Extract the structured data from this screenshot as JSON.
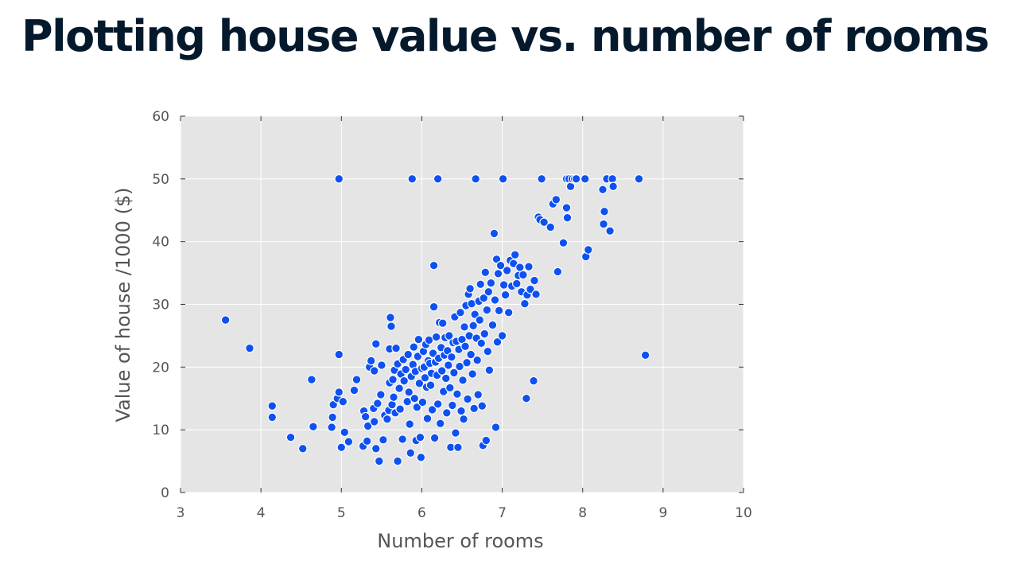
{
  "slide": {
    "title": "Plotting house value vs. number of rooms"
  },
  "colors": {
    "title": "#05192d",
    "plot_background": "#e5e5e5",
    "grid": "#ffffff",
    "point_fill": "#0f51f0",
    "point_edge": "#ffffff",
    "text": "#555555"
  },
  "chart_data": {
    "type": "scatter",
    "xlabel": "Number of rooms",
    "ylabel": "Value of house /1000 ($)",
    "xlim": [
      3,
      10
    ],
    "ylim": [
      0,
      60
    ],
    "xticks": [
      3,
      4,
      5,
      6,
      7,
      8,
      9,
      10
    ],
    "yticks": [
      0,
      10,
      20,
      30,
      40,
      50,
      60
    ],
    "grid": true,
    "legend": "none",
    "points": [
      [
        3.56,
        27.5
      ],
      [
        3.86,
        23.0
      ],
      [
        4.14,
        13.8
      ],
      [
        4.14,
        12.0
      ],
      [
        4.37,
        8.8
      ],
      [
        4.52,
        7.0
      ],
      [
        4.63,
        18.0
      ],
      [
        4.65,
        10.5
      ],
      [
        4.88,
        10.4
      ],
      [
        4.89,
        12.0
      ],
      [
        4.9,
        14.0
      ],
      [
        4.95,
        15.0
      ],
      [
        4.97,
        16.0
      ],
      [
        4.97,
        50.0
      ],
      [
        4.97,
        22.0
      ],
      [
        5.0,
        7.2
      ],
      [
        5.02,
        14.5
      ],
      [
        5.04,
        9.6
      ],
      [
        5.09,
        8.1
      ],
      [
        5.16,
        16.3
      ],
      [
        5.19,
        18.0
      ],
      [
        5.27,
        7.4
      ],
      [
        5.28,
        13.0
      ],
      [
        5.3,
        12.1
      ],
      [
        5.32,
        8.2
      ],
      [
        5.33,
        10.6
      ],
      [
        5.35,
        20.0
      ],
      [
        5.37,
        21.0
      ],
      [
        5.4,
        13.4
      ],
      [
        5.41,
        11.3
      ],
      [
        5.41,
        19.4
      ],
      [
        5.43,
        23.7
      ],
      [
        5.43,
        7.0
      ],
      [
        5.45,
        14.2
      ],
      [
        5.47,
        5.0
      ],
      [
        5.49,
        15.6
      ],
      [
        5.5,
        20.3
      ],
      [
        5.52,
        8.4
      ],
      [
        5.54,
        12.3
      ],
      [
        5.57,
        11.7
      ],
      [
        5.59,
        13.1
      ],
      [
        5.6,
        17.5
      ],
      [
        5.6,
        22.9
      ],
      [
        5.61,
        27.9
      ],
      [
        5.62,
        26.5
      ],
      [
        5.63,
        14.0
      ],
      [
        5.64,
        18.0
      ],
      [
        5.65,
        15.2
      ],
      [
        5.66,
        19.5
      ],
      [
        5.67,
        12.7
      ],
      [
        5.68,
        23.0
      ],
      [
        5.7,
        5.0
      ],
      [
        5.7,
        20.5
      ],
      [
        5.72,
        16.6
      ],
      [
        5.73,
        13.3
      ],
      [
        5.74,
        18.9
      ],
      [
        5.76,
        8.5
      ],
      [
        5.77,
        21.2
      ],
      [
        5.78,
        17.8
      ],
      [
        5.8,
        19.6
      ],
      [
        5.82,
        14.5
      ],
      [
        5.83,
        22.0
      ],
      [
        5.84,
        16.0
      ],
      [
        5.85,
        10.9
      ],
      [
        5.86,
        6.3
      ],
      [
        5.87,
        18.5
      ],
      [
        5.88,
        50.0
      ],
      [
        5.89,
        20.4
      ],
      [
        5.9,
        23.2
      ],
      [
        5.91,
        15.0
      ],
      [
        5.92,
        19.3
      ],
      [
        5.93,
        8.3
      ],
      [
        5.94,
        13.6
      ],
      [
        5.95,
        21.7
      ],
      [
        5.96,
        24.4
      ],
      [
        5.97,
        17.4
      ],
      [
        5.98,
        8.8
      ],
      [
        5.99,
        5.6
      ],
      [
        6.0,
        19.8
      ],
      [
        6.01,
        14.4
      ],
      [
        6.02,
        22.5
      ],
      [
        6.03,
        20.0
      ],
      [
        6.04,
        18.3
      ],
      [
        6.05,
        23.6
      ],
      [
        6.06,
        16.8
      ],
      [
        6.07,
        11.8
      ],
      [
        6.08,
        21.0
      ],
      [
        6.09,
        24.3
      ],
      [
        6.1,
        20.6
      ],
      [
        6.11,
        17.1
      ],
      [
        6.12,
        19.0
      ],
      [
        6.13,
        13.2
      ],
      [
        6.14,
        22.2
      ],
      [
        6.15,
        36.2
      ],
      [
        6.15,
        29.6
      ],
      [
        6.16,
        8.7
      ],
      [
        6.17,
        20.8
      ],
      [
        6.18,
        24.8
      ],
      [
        6.19,
        18.7
      ],
      [
        6.2,
        50.0
      ],
      [
        6.2,
        14.1
      ],
      [
        6.21,
        21.4
      ],
      [
        6.22,
        27.1
      ],
      [
        6.23,
        11.0
      ],
      [
        6.24,
        23.1
      ],
      [
        6.25,
        19.4
      ],
      [
        6.26,
        27.0
      ],
      [
        6.27,
        16.1
      ],
      [
        6.28,
        21.9
      ],
      [
        6.29,
        24.7
      ],
      [
        6.3,
        18.2
      ],
      [
        6.31,
        12.7
      ],
      [
        6.32,
        22.6
      ],
      [
        6.33,
        20.3
      ],
      [
        6.34,
        25.0
      ],
      [
        6.35,
        16.7
      ],
      [
        6.36,
        7.2
      ],
      [
        6.37,
        21.6
      ],
      [
        6.38,
        13.9
      ],
      [
        6.39,
        23.9
      ],
      [
        6.4,
        19.1
      ],
      [
        6.41,
        28.0
      ],
      [
        6.42,
        9.5
      ],
      [
        6.43,
        24.1
      ],
      [
        6.44,
        15.7
      ],
      [
        6.45,
        7.2
      ],
      [
        6.46,
        22.8
      ],
      [
        6.47,
        20.1
      ],
      [
        6.48,
        28.7
      ],
      [
        6.49,
        13.0
      ],
      [
        6.5,
        24.4
      ],
      [
        6.51,
        17.9
      ],
      [
        6.52,
        11.7
      ],
      [
        6.53,
        26.4
      ],
      [
        6.54,
        23.3
      ],
      [
        6.55,
        29.8
      ],
      [
        6.56,
        20.7
      ],
      [
        6.57,
        14.9
      ],
      [
        6.58,
        31.6
      ],
      [
        6.59,
        25.0
      ],
      [
        6.6,
        32.5
      ],
      [
        6.61,
        22.0
      ],
      [
        6.62,
        30.1
      ],
      [
        6.63,
        18.9
      ],
      [
        6.64,
        26.6
      ],
      [
        6.65,
        13.4
      ],
      [
        6.66,
        28.4
      ],
      [
        6.67,
        50.0
      ],
      [
        6.68,
        24.6
      ],
      [
        6.69,
        21.1
      ],
      [
        6.7,
        15.6
      ],
      [
        6.71,
        30.5
      ],
      [
        6.72,
        27.5
      ],
      [
        6.73,
        33.2
      ],
      [
        6.74,
        23.8
      ],
      [
        6.75,
        13.8
      ],
      [
        6.76,
        7.5
      ],
      [
        6.77,
        31.0
      ],
      [
        6.78,
        25.3
      ],
      [
        6.79,
        35.1
      ],
      [
        6.8,
        8.3
      ],
      [
        6.81,
        29.1
      ],
      [
        6.82,
        22.5
      ],
      [
        6.83,
        32.0
      ],
      [
        6.84,
        19.5
      ],
      [
        6.86,
        33.4
      ],
      [
        6.88,
        26.7
      ],
      [
        6.9,
        41.3
      ],
      [
        6.91,
        30.7
      ],
      [
        6.92,
        10.4
      ],
      [
        6.93,
        37.2
      ],
      [
        6.94,
        24.0
      ],
      [
        6.95,
        34.9
      ],
      [
        6.96,
        29.0
      ],
      [
        6.98,
        36.2
      ],
      [
        7.0,
        25.0
      ],
      [
        7.01,
        50.0
      ],
      [
        7.02,
        33.1
      ],
      [
        7.04,
        31.5
      ],
      [
        7.06,
        35.4
      ],
      [
        7.08,
        28.7
      ],
      [
        7.1,
        37.0
      ],
      [
        7.12,
        32.9
      ],
      [
        7.14,
        36.5
      ],
      [
        7.16,
        37.9
      ],
      [
        7.18,
        33.3
      ],
      [
        7.2,
        34.6
      ],
      [
        7.22,
        35.9
      ],
      [
        7.24,
        32.0
      ],
      [
        7.26,
        34.7
      ],
      [
        7.28,
        30.1
      ],
      [
        7.3,
        15.0
      ],
      [
        7.31,
        31.5
      ],
      [
        7.33,
        36.0
      ],
      [
        7.35,
        32.4
      ],
      [
        7.39,
        17.8
      ],
      [
        7.4,
        33.8
      ],
      [
        7.42,
        31.6
      ],
      [
        7.45,
        43.9
      ],
      [
        7.47,
        43.5
      ],
      [
        7.49,
        50.0
      ],
      [
        7.52,
        43.1
      ],
      [
        7.6,
        42.3
      ],
      [
        7.63,
        46.0
      ],
      [
        7.67,
        46.7
      ],
      [
        7.69,
        35.2
      ],
      [
        7.76,
        39.8
      ],
      [
        7.8,
        50.0
      ],
      [
        7.8,
        45.4
      ],
      [
        7.81,
        43.8
      ],
      [
        7.83,
        50.0
      ],
      [
        7.85,
        48.8
      ],
      [
        7.87,
        50.0
      ],
      [
        7.9,
        50.0
      ],
      [
        7.92,
        50.0
      ],
      [
        8.03,
        50.0
      ],
      [
        8.04,
        37.6
      ],
      [
        8.07,
        38.7
      ],
      [
        8.25,
        48.3
      ],
      [
        8.26,
        42.8
      ],
      [
        8.27,
        44.8
      ],
      [
        8.3,
        50.0
      ],
      [
        8.34,
        41.7
      ],
      [
        8.37,
        50.0
      ],
      [
        8.38,
        48.8
      ],
      [
        8.7,
        50.0
      ],
      [
        8.78,
        21.9
      ]
    ]
  }
}
